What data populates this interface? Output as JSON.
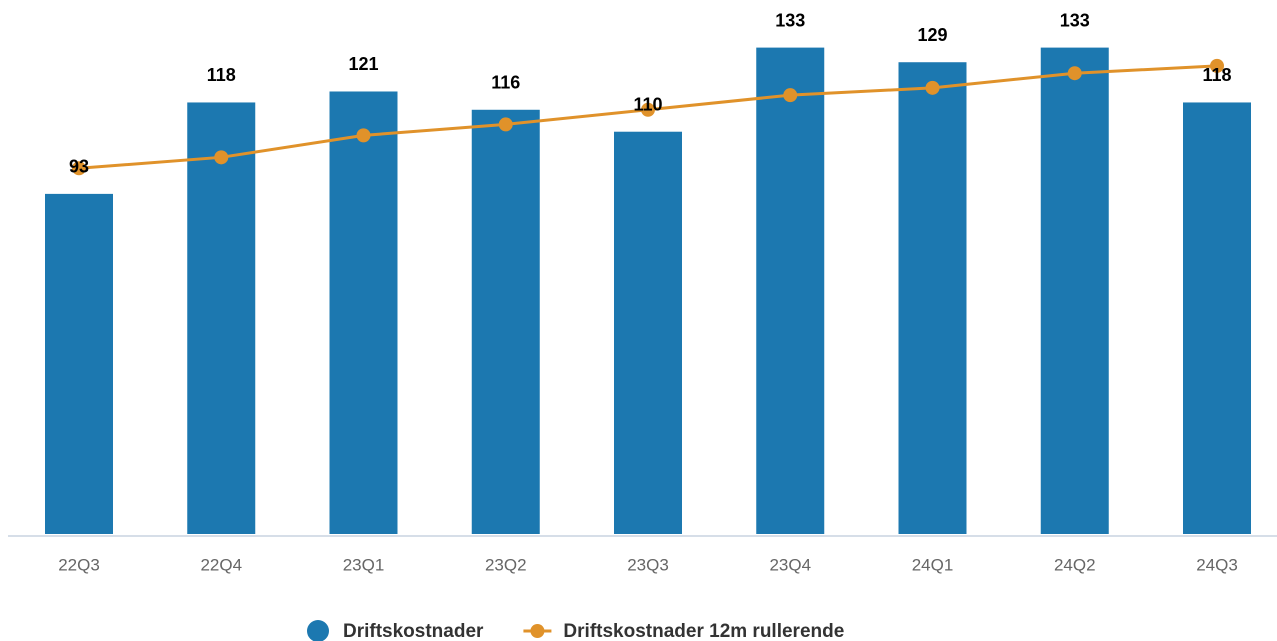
{
  "chart_data": {
    "type": "bar",
    "categories": [
      "22Q3",
      "22Q4",
      "23Q1",
      "23Q2",
      "23Q3",
      "23Q4",
      "24Q1",
      "24Q2",
      "24Q3"
    ],
    "series": [
      {
        "name": "Driftskostnader",
        "type": "bar",
        "color": "#1c78b0",
        "values": [
          93,
          118,
          121,
          116,
          110,
          133,
          129,
          133,
          118
        ]
      },
      {
        "name": "Driftskostnader 12m rullerende",
        "type": "line",
        "color": "#e0922a",
        "values": [
          100,
          103,
          109,
          112,
          116,
          120,
          122,
          126,
          128
        ]
      }
    ],
    "ylim": [
      0,
      140
    ],
    "legend": "bottom"
  }
}
